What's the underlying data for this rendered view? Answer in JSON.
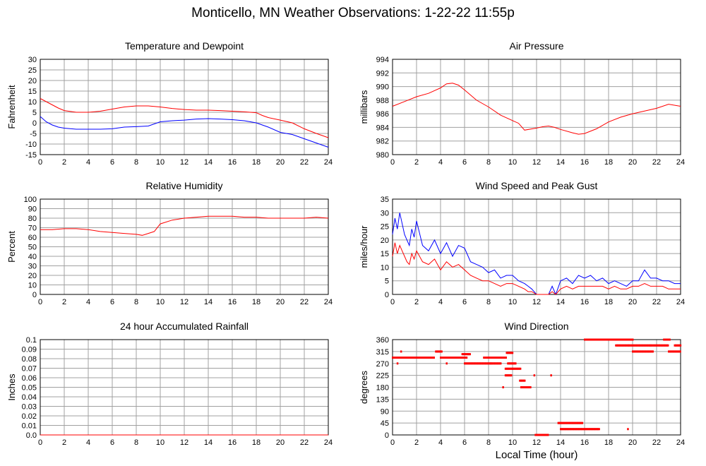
{
  "title": "Monticello, MN Weather Observations: 1-22-22 11:55p",
  "x_axis_label": "Local Time (hour)",
  "colors": {
    "red": "#ff0000",
    "blue": "#0000ff",
    "grid": "#a0a0a0"
  },
  "chart_data": [
    {
      "type": "line",
      "title": "Temperature and Dewpoint",
      "ylabel": "Fahrenheit",
      "xlim": [
        0,
        24
      ],
      "ylim": [
        -15,
        30
      ],
      "xticks": [
        "0",
        "2",
        "4",
        "6",
        "8",
        "10",
        "12",
        "14",
        "16",
        "18",
        "20",
        "22",
        "24"
      ],
      "yticks": [
        "-15",
        "-10",
        "-5",
        "0",
        "5",
        "10",
        "15",
        "20",
        "25",
        "30"
      ],
      "grid": true,
      "series": [
        {
          "color": "red",
          "x": [
            0,
            0.5,
            1,
            1.5,
            2,
            3,
            4,
            5,
            6,
            7,
            8,
            9,
            10,
            11,
            12,
            13,
            14,
            15,
            16,
            17,
            18,
            18.5,
            19,
            20,
            21,
            22,
            23,
            24
          ],
          "y": [
            11.5,
            10,
            8.5,
            7,
            5.8,
            5,
            5,
            5.5,
            6.5,
            7.5,
            8,
            8,
            7.5,
            6.8,
            6.3,
            6,
            6,
            5.8,
            5.5,
            5.2,
            4.8,
            3.5,
            2.5,
            1.3,
            0,
            -2.8,
            -5,
            -7
          ]
        },
        {
          "color": "blue",
          "x": [
            0,
            0.5,
            1,
            1.5,
            2,
            3,
            4,
            5,
            6,
            7,
            8,
            9,
            10,
            11,
            12,
            13,
            14,
            15,
            16,
            17,
            18,
            19,
            20,
            21,
            22,
            23,
            24
          ],
          "y": [
            3,
            0.5,
            -1,
            -2,
            -2.5,
            -3,
            -3,
            -3,
            -2.8,
            -2,
            -1.8,
            -1.5,
            0.5,
            1,
            1.3,
            1.8,
            2,
            1.8,
            1.5,
            1,
            0,
            -2,
            -4.5,
            -5.5,
            -7.5,
            -9.5,
            -11.5
          ]
        }
      ]
    },
    {
      "type": "line",
      "title": "Air Pressure",
      "ylabel": "millibars",
      "xlim": [
        0,
        24
      ],
      "ylim": [
        980,
        994
      ],
      "xticks": [
        "0",
        "2",
        "4",
        "6",
        "8",
        "10",
        "12",
        "14",
        "16",
        "18",
        "20",
        "22",
        "24"
      ],
      "yticks": [
        "980",
        "982",
        "984",
        "986",
        "988",
        "990",
        "992",
        "994"
      ],
      "grid": true,
      "series": [
        {
          "color": "red",
          "x": [
            0,
            1,
            2,
            3,
            4,
            4.5,
            5,
            5.5,
            6,
            7,
            8,
            9,
            10,
            10.5,
            11,
            12,
            12.5,
            13,
            13.5,
            14,
            15,
            15.5,
            16,
            17,
            18,
            19,
            20,
            21,
            22,
            23,
            24
          ],
          "y": [
            987.1,
            987.8,
            988.5,
            989,
            989.8,
            990.4,
            990.5,
            990.2,
            989.5,
            988,
            987,
            985.8,
            985,
            984.6,
            983.6,
            983.9,
            984.1,
            984.2,
            984,
            983.7,
            983.2,
            983,
            983.1,
            983.8,
            984.8,
            985.5,
            986,
            986.4,
            986.8,
            987.4,
            987.1
          ]
        }
      ]
    },
    {
      "type": "line",
      "title": "Relative Humidity",
      "ylabel": "Percent",
      "xlim": [
        0,
        24
      ],
      "ylim": [
        0,
        100
      ],
      "xticks": [
        "0",
        "2",
        "4",
        "6",
        "8",
        "10",
        "12",
        "14",
        "16",
        "18",
        "20",
        "22",
        "24"
      ],
      "yticks": [
        "0",
        "10",
        "20",
        "30",
        "40",
        "50",
        "60",
        "70",
        "80",
        "90",
        "100"
      ],
      "grid": true,
      "series": [
        {
          "color": "red",
          "x": [
            0,
            1,
            2,
            3,
            4,
            5,
            6,
            7,
            8,
            8.5,
            9,
            9.5,
            10,
            11,
            12,
            13,
            14,
            15,
            16,
            17,
            18,
            19,
            20,
            21,
            22,
            23,
            24
          ],
          "y": [
            68,
            68,
            69,
            69,
            68,
            66,
            65,
            64,
            63,
            62,
            64,
            66,
            74,
            78,
            80,
            81,
            82,
            82,
            82,
            81,
            81,
            80,
            80,
            80,
            80,
            81,
            80
          ]
        }
      ]
    },
    {
      "type": "line",
      "title": "Wind Speed and Peak Gust",
      "ylabel": "miles/hour",
      "xlim": [
        0,
        24
      ],
      "ylim": [
        0,
        35
      ],
      "xticks": [
        "0",
        "2",
        "4",
        "6",
        "8",
        "10",
        "12",
        "14",
        "16",
        "18",
        "20",
        "22",
        "24"
      ],
      "yticks": [
        "0",
        "5",
        "10",
        "15",
        "20",
        "25",
        "30",
        "35"
      ],
      "grid": true,
      "series": [
        {
          "color": "blue",
          "x": [
            0,
            0.2,
            0.4,
            0.6,
            0.8,
            1,
            1.2,
            1.4,
            1.6,
            1.8,
            2,
            2.5,
            3,
            3.5,
            4,
            4.5,
            5,
            5.5,
            6,
            6.5,
            7,
            7.5,
            8,
            8.5,
            9,
            9.5,
            10,
            10.5,
            11,
            11.3,
            11.6,
            12,
            12.5,
            13,
            13.3,
            13.6,
            14,
            14.5,
            15,
            15.5,
            16,
            16.5,
            17,
            17.5,
            18,
            18.5,
            19,
            19.5,
            20,
            20.5,
            21,
            21.5,
            22,
            22.5,
            23,
            23.5,
            24
          ],
          "y": [
            22,
            28,
            24,
            30,
            26,
            22,
            20,
            18,
            24,
            21,
            27,
            18,
            16,
            20,
            15,
            19,
            14,
            18,
            17,
            12,
            11,
            10,
            8,
            9,
            6,
            7,
            7,
            5,
            4,
            3,
            2,
            0,
            0,
            0,
            3,
            0,
            5,
            6,
            4,
            7,
            6,
            7,
            5,
            6,
            4,
            5,
            4,
            3,
            5,
            5,
            9,
            6,
            6,
            5,
            5,
            4,
            4
          ]
        },
        {
          "color": "red",
          "x": [
            0,
            0.2,
            0.4,
            0.6,
            0.8,
            1,
            1.2,
            1.4,
            1.6,
            1.8,
            2,
            2.5,
            3,
            3.5,
            4,
            4.5,
            5,
            5.5,
            6,
            6.5,
            7,
            7.5,
            8,
            8.5,
            9,
            9.5,
            10,
            10.5,
            11,
            11.3,
            11.6,
            12,
            12.5,
            13,
            13.3,
            13.6,
            14,
            14.5,
            15,
            15.5,
            16,
            16.5,
            17,
            17.5,
            18,
            18.5,
            19,
            19.5,
            20,
            20.5,
            21,
            21.5,
            22,
            22.5,
            23,
            23.5,
            24
          ],
          "y": [
            14,
            19,
            15,
            18,
            16,
            14,
            12,
            11,
            15,
            13,
            16,
            12,
            11,
            13,
            9,
            12,
            10,
            11,
            9,
            7,
            6,
            5,
            5,
            4,
            3,
            4,
            4,
            3,
            2,
            1,
            1,
            0,
            0,
            0,
            1,
            0,
            2,
            3,
            2,
            3,
            3,
            3,
            3,
            3,
            2,
            3,
            2,
            2,
            3,
            3,
            4,
            3,
            3,
            3,
            2,
            2,
            2
          ]
        }
      ]
    },
    {
      "type": "line",
      "title": "24 hour Accumulated Rainfall",
      "ylabel": "Inches",
      "xlim": [
        0,
        24
      ],
      "ylim": [
        0,
        0.1
      ],
      "xticks": [
        "0",
        "2",
        "4",
        "6",
        "8",
        "10",
        "12",
        "14",
        "16",
        "18",
        "20",
        "22",
        "24"
      ],
      "yticks": [
        "0.0",
        "0.01",
        "0.02",
        "0.03",
        "0.04",
        "0.05",
        "0.06",
        "0.07",
        "0.08",
        "0.09",
        "0.1"
      ],
      "grid": true,
      "series": [
        {
          "color": "red",
          "x": [
            0,
            24
          ],
          "y": [
            0,
            0
          ]
        }
      ]
    },
    {
      "type": "scatter",
      "title": "Wind Direction",
      "ylabel": "degrees",
      "xlim": [
        0,
        24
      ],
      "ylim": [
        0,
        360
      ],
      "xticks": [
        "0",
        "2",
        "4",
        "6",
        "8",
        "10",
        "12",
        "14",
        "16",
        "18",
        "20",
        "22",
        "24"
      ],
      "yticks": [
        "0",
        "45",
        "90",
        "135",
        "180",
        "225",
        "270",
        "315",
        "360"
      ],
      "grid": true,
      "segments": [
        {
          "x0": 0,
          "x1": 3.5,
          "y": 292
        },
        {
          "x0": 3.6,
          "x1": 4.1,
          "y": 315
        },
        {
          "x0": 4.0,
          "x1": 6.2,
          "y": 292
        },
        {
          "x0": 5.8,
          "x1": 6.5,
          "y": 305
        },
        {
          "x0": 6.0,
          "x1": 8.2,
          "y": 270
        },
        {
          "x0": 7.6,
          "x1": 8.0,
          "y": 292
        },
        {
          "x0": 8.0,
          "x1": 9.5,
          "y": 292
        },
        {
          "x0": 8.2,
          "x1": 9.0,
          "y": 270
        },
        {
          "x0": 9.5,
          "x1": 10.0,
          "y": 310
        },
        {
          "x0": 9.6,
          "x1": 10.3,
          "y": 270
        },
        {
          "x0": 9.4,
          "x1": 10.0,
          "y": 250
        },
        {
          "x0": 10.0,
          "x1": 10.7,
          "y": 250
        },
        {
          "x0": 9.4,
          "x1": 9.9,
          "y": 225
        },
        {
          "x0": 10.6,
          "x1": 11.0,
          "y": 205
        },
        {
          "x0": 11.0,
          "x1": 11.5,
          "y": 180
        },
        {
          "x0": 10.7,
          "x1": 11.0,
          "y": 180
        },
        {
          "x0": 11.9,
          "x1": 13.0,
          "y": 0
        },
        {
          "x0": 13.8,
          "x1": 15.8,
          "y": 45
        },
        {
          "x0": 14.0,
          "x1": 17.2,
          "y": 22
        },
        {
          "x0": 16.0,
          "x1": 20.0,
          "y": 360
        },
        {
          "x0": 18.6,
          "x1": 19.7,
          "y": 338
        },
        {
          "x0": 19.7,
          "x1": 21.5,
          "y": 338
        },
        {
          "x0": 20.0,
          "x1": 21.7,
          "y": 315
        },
        {
          "x0": 21.5,
          "x1": 23.0,
          "y": 338
        },
        {
          "x0": 22.6,
          "x1": 23.1,
          "y": 360
        },
        {
          "x0": 23.0,
          "x1": 24.0,
          "y": 315
        },
        {
          "x0": 23.5,
          "x1": 24.0,
          "y": 338
        }
      ],
      "points": [
        {
          "x": 0.7,
          "y": 315
        },
        {
          "x": 0.4,
          "y": 270
        },
        {
          "x": 4.5,
          "y": 270
        },
        {
          "x": 9.2,
          "y": 180
        },
        {
          "x": 11.8,
          "y": 225
        },
        {
          "x": 13.2,
          "y": 225
        },
        {
          "x": 19.6,
          "y": 22
        }
      ]
    }
  ]
}
